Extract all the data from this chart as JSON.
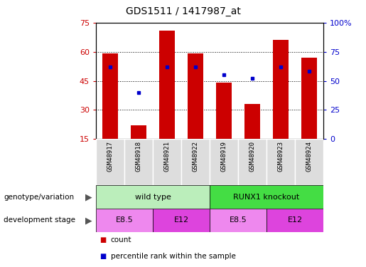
{
  "title": "GDS1511 / 1417987_at",
  "samples": [
    "GSM48917",
    "GSM48918",
    "GSM48921",
    "GSM48922",
    "GSM48919",
    "GSM48920",
    "GSM48923",
    "GSM48924"
  ],
  "counts": [
    59,
    22,
    71,
    59,
    44,
    33,
    66,
    57
  ],
  "percentiles": [
    62,
    40,
    62,
    62,
    55,
    52,
    62,
    58
  ],
  "left_ylim": [
    15,
    75
  ],
  "left_yticks": [
    15,
    30,
    45,
    60,
    75
  ],
  "right_ylim": [
    0,
    100
  ],
  "right_yticks": [
    0,
    25,
    50,
    75,
    100
  ],
  "right_yticklabels": [
    "0",
    "25",
    "50",
    "75",
    "100%"
  ],
  "bar_color": "#cc0000",
  "dot_color": "#0000cc",
  "genotype_groups": [
    {
      "label": "wild type",
      "start": 0,
      "end": 4,
      "color": "#bbeebb"
    },
    {
      "label": "RUNX1 knockout",
      "start": 4,
      "end": 8,
      "color": "#44dd44"
    }
  ],
  "dev_stage_groups": [
    {
      "label": "E8.5",
      "start": 0,
      "end": 2,
      "color": "#ee88ee"
    },
    {
      "label": "E12",
      "start": 2,
      "end": 4,
      "color": "#dd44dd"
    },
    {
      "label": "E8.5",
      "start": 4,
      "end": 6,
      "color": "#ee88ee"
    },
    {
      "label": "E12",
      "start": 6,
      "end": 8,
      "color": "#dd44dd"
    }
  ],
  "legend_count_label": "count",
  "legend_pct_label": "percentile rank within the sample",
  "genotype_label": "genotype/variation",
  "dev_stage_label": "development stage",
  "bg_color": "#ffffff",
  "tick_label_color_left": "#cc0000",
  "tick_label_color_right": "#0000cc",
  "sample_cell_color": "#dddddd",
  "gridline_ticks": [
    30,
    45,
    60
  ]
}
